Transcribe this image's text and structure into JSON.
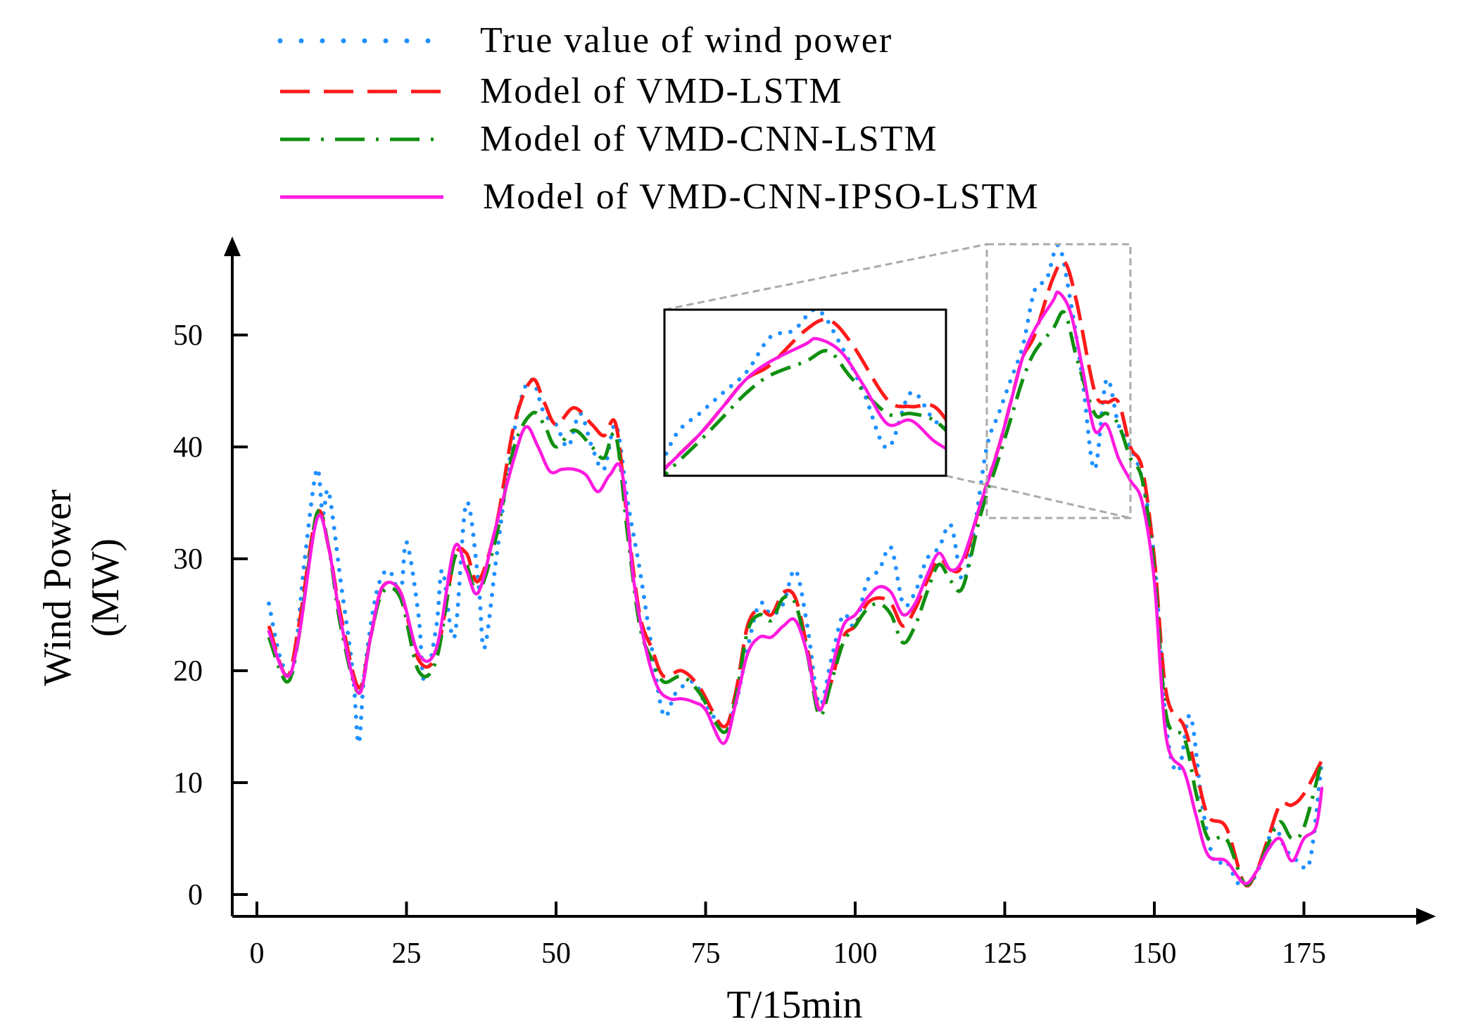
{
  "chart_data": {
    "type": "line",
    "title": "",
    "xlabel": "T/15min",
    "ylabel_line1": "Wind Power",
    "ylabel_line2": "(MW)",
    "xlim": [
      -2,
      192
    ],
    "ylim": [
      -1,
      58
    ],
    "xticks": [
      0,
      25,
      50,
      75,
      100,
      125,
      150,
      175
    ],
    "yticks": [
      0,
      10,
      20,
      30,
      40,
      50
    ],
    "legend_position": "top-center",
    "inset": {
      "x_range": [
        121,
        145
      ],
      "y_range": [
        34,
        58
      ],
      "note": "zoomed view of peak region"
    },
    "series": [
      {
        "name": "True value of wind power",
        "color": "#1e90ff",
        "style": "dotted",
        "points": [
          [
            2,
            26
          ],
          [
            4,
            21
          ],
          [
            6,
            20
          ],
          [
            8,
            30
          ],
          [
            10,
            38
          ],
          [
            11,
            34
          ],
          [
            12,
            36
          ],
          [
            14,
            28
          ],
          [
            16,
            20
          ],
          [
            17,
            13.5
          ],
          [
            18,
            20
          ],
          [
            20,
            27
          ],
          [
            22,
            29
          ],
          [
            24,
            27
          ],
          [
            25,
            31.5
          ],
          [
            27,
            25
          ],
          [
            28,
            19
          ],
          [
            30,
            24
          ],
          [
            31,
            29
          ],
          [
            33,
            23
          ],
          [
            35,
            35
          ],
          [
            37,
            28
          ],
          [
            38,
            22
          ],
          [
            40,
            30
          ],
          [
            42,
            38
          ],
          [
            44,
            44
          ],
          [
            46,
            46
          ],
          [
            48,
            43
          ],
          [
            50,
            42
          ],
          [
            52,
            40
          ],
          [
            54,
            43
          ],
          [
            56,
            40
          ],
          [
            58,
            38
          ],
          [
            60,
            42
          ],
          [
            62,
            35
          ],
          [
            64,
            29
          ],
          [
            66,
            22
          ],
          [
            68,
            16
          ],
          [
            70,
            18
          ],
          [
            73,
            19
          ],
          [
            75,
            17
          ],
          [
            78,
            15
          ],
          [
            80,
            17
          ],
          [
            82,
            22
          ],
          [
            84,
            26
          ],
          [
            86,
            25
          ],
          [
            88,
            26
          ],
          [
            90,
            29
          ],
          [
            92,
            24
          ],
          [
            94,
            17
          ],
          [
            96,
            21
          ],
          [
            98,
            25
          ],
          [
            100,
            24
          ],
          [
            102,
            28
          ],
          [
            104,
            29
          ],
          [
            106,
            31
          ],
          [
            108,
            26
          ],
          [
            110,
            27
          ],
          [
            112,
            30
          ],
          [
            114,
            31
          ],
          [
            116,
            33
          ],
          [
            118,
            28
          ],
          [
            120,
            33
          ],
          [
            122,
            40
          ],
          [
            124,
            43
          ],
          [
            126,
            46
          ],
          [
            128,
            49
          ],
          [
            130,
            54
          ],
          [
            132,
            55
          ],
          [
            134,
            58
          ],
          [
            136,
            53
          ],
          [
            138,
            46
          ],
          [
            140,
            38
          ],
          [
            142,
            46
          ],
          [
            144,
            42
          ],
          [
            146,
            40
          ],
          [
            148,
            37
          ],
          [
            150,
            30
          ],
          [
            152,
            15
          ],
          [
            154,
            11
          ],
          [
            156,
            16
          ],
          [
            158,
            8
          ],
          [
            160,
            3
          ],
          [
            162,
            3
          ],
          [
            164,
            1
          ],
          [
            166,
            1
          ],
          [
            168,
            3
          ],
          [
            170,
            6
          ],
          [
            172,
            4
          ],
          [
            174,
            3
          ],
          [
            176,
            3
          ],
          [
            178,
            12
          ]
        ]
      },
      {
        "name": "Model of VMD-LSTM",
        "color": "#ff1a1a",
        "style": "dashed",
        "points": [
          [
            2,
            24
          ],
          [
            5,
            19.5
          ],
          [
            7,
            24
          ],
          [
            10,
            34
          ],
          [
            12,
            31
          ],
          [
            14,
            25
          ],
          [
            17,
            18.5
          ],
          [
            19,
            23
          ],
          [
            21,
            27.5
          ],
          [
            24,
            27
          ],
          [
            27,
            21
          ],
          [
            30,
            21.5
          ],
          [
            33,
            30
          ],
          [
            35,
            30.5
          ],
          [
            37,
            28
          ],
          [
            40,
            33
          ],
          [
            43,
            42
          ],
          [
            46,
            46
          ],
          [
            48,
            44
          ],
          [
            50,
            42
          ],
          [
            53,
            43.5
          ],
          [
            56,
            42
          ],
          [
            58,
            41
          ],
          [
            60,
            42
          ],
          [
            62,
            33
          ],
          [
            64,
            25
          ],
          [
            66,
            22
          ],
          [
            68,
            19.5
          ],
          [
            71,
            20
          ],
          [
            74,
            18.5
          ],
          [
            78,
            15
          ],
          [
            80,
            18
          ],
          [
            82,
            24
          ],
          [
            84,
            25.5
          ],
          [
            86,
            25
          ],
          [
            88,
            27
          ],
          [
            90,
            26.5
          ],
          [
            92,
            22
          ],
          [
            94,
            16.5
          ],
          [
            96,
            19
          ],
          [
            98,
            23
          ],
          [
            100,
            24
          ],
          [
            102,
            26
          ],
          [
            104,
            26.5
          ],
          [
            106,
            26
          ],
          [
            108,
            24
          ],
          [
            110,
            25.5
          ],
          [
            112,
            28
          ],
          [
            114,
            30
          ],
          [
            116,
            29
          ],
          [
            118,
            29.5
          ],
          [
            121,
            35
          ],
          [
            124,
            40
          ],
          [
            126,
            44
          ],
          [
            128,
            48
          ],
          [
            130,
            50
          ],
          [
            133,
            55
          ],
          [
            135,
            56.5
          ],
          [
            137,
            53
          ],
          [
            140,
            45
          ],
          [
            142,
            44
          ],
          [
            144,
            44
          ],
          [
            146,
            40
          ],
          [
            148,
            38
          ],
          [
            150,
            30
          ],
          [
            152,
            18
          ],
          [
            155,
            15
          ],
          [
            157,
            11
          ],
          [
            159,
            7
          ],
          [
            162,
            6
          ],
          [
            165,
            1
          ],
          [
            167,
            2
          ],
          [
            169,
            5
          ],
          [
            171,
            8
          ],
          [
            173,
            8
          ],
          [
            175,
            9
          ],
          [
            178,
            12
          ]
        ]
      },
      {
        "name": "Model of VMD-CNN-LSTM",
        "color": "#109010",
        "style": "dashdot",
        "points": [
          [
            2,
            23
          ],
          [
            5,
            19
          ],
          [
            7,
            23
          ],
          [
            10,
            34
          ],
          [
            12,
            31
          ],
          [
            14,
            24
          ],
          [
            17,
            18
          ],
          [
            19,
            23
          ],
          [
            21,
            27
          ],
          [
            24,
            26.5
          ],
          [
            27,
            20
          ],
          [
            30,
            21
          ],
          [
            33,
            30
          ],
          [
            35,
            29.5
          ],
          [
            37,
            27
          ],
          [
            40,
            32
          ],
          [
            43,
            40
          ],
          [
            46,
            43
          ],
          [
            48,
            42
          ],
          [
            50,
            40
          ],
          [
            53,
            41.5
          ],
          [
            56,
            40
          ],
          [
            58,
            39
          ],
          [
            60,
            41
          ],
          [
            62,
            32
          ],
          [
            64,
            24
          ],
          [
            66,
            21
          ],
          [
            68,
            19
          ],
          [
            71,
            19.5
          ],
          [
            74,
            18
          ],
          [
            78,
            14.5
          ],
          [
            80,
            17.5
          ],
          [
            82,
            23.5
          ],
          [
            84,
            25
          ],
          [
            86,
            24.5
          ],
          [
            88,
            26.5
          ],
          [
            90,
            26
          ],
          [
            92,
            21.5
          ],
          [
            94,
            16
          ],
          [
            96,
            19
          ],
          [
            98,
            22.5
          ],
          [
            100,
            24
          ],
          [
            102,
            25.5
          ],
          [
            104,
            26
          ],
          [
            106,
            25
          ],
          [
            108,
            22.5
          ],
          [
            110,
            24
          ],
          [
            112,
            27
          ],
          [
            114,
            29.5
          ],
          [
            116,
            28
          ],
          [
            118,
            27.5
          ],
          [
            121,
            34
          ],
          [
            124,
            39
          ],
          [
            126,
            42.5
          ],
          [
            128,
            46
          ],
          [
            130,
            48.5
          ],
          [
            133,
            50.5
          ],
          [
            135,
            52
          ],
          [
            137,
            48
          ],
          [
            140,
            43
          ],
          [
            142,
            43
          ],
          [
            144,
            42
          ],
          [
            146,
            39
          ],
          [
            148,
            37
          ],
          [
            150,
            29
          ],
          [
            152,
            16
          ],
          [
            155,
            14
          ],
          [
            157,
            9
          ],
          [
            159,
            5
          ],
          [
            162,
            5
          ],
          [
            165,
            1
          ],
          [
            167,
            2
          ],
          [
            169,
            4.5
          ],
          [
            171,
            6.5
          ],
          [
            173,
            5
          ],
          [
            175,
            6
          ],
          [
            178,
            12
          ]
        ]
      },
      {
        "name": "Model of VMD-CNN-IPSO-LSTM",
        "color": "#ff1ae0",
        "style": "solid",
        "points": [
          [
            2,
            23.5
          ],
          [
            5,
            19.5
          ],
          [
            7,
            23
          ],
          [
            10,
            33.5
          ],
          [
            12,
            31
          ],
          [
            14,
            24.5
          ],
          [
            17,
            18
          ],
          [
            19,
            23
          ],
          [
            21,
            27.5
          ],
          [
            24,
            27
          ],
          [
            27,
            21.5
          ],
          [
            30,
            22
          ],
          [
            33,
            31
          ],
          [
            35,
            29
          ],
          [
            37,
            27
          ],
          [
            40,
            33
          ],
          [
            43,
            39
          ],
          [
            45,
            41.8
          ],
          [
            47,
            40
          ],
          [
            49,
            37.8
          ],
          [
            51,
            38
          ],
          [
            53,
            38
          ],
          [
            55,
            37.5
          ],
          [
            57,
            36
          ],
          [
            59,
            37.5
          ],
          [
            61,
            37.8
          ],
          [
            63,
            28
          ],
          [
            65,
            22
          ],
          [
            67,
            18.5
          ],
          [
            69,
            17.5
          ],
          [
            71,
            17.5
          ],
          [
            73,
            17.2
          ],
          [
            75,
            16.5
          ],
          [
            78,
            13.5
          ],
          [
            80,
            17
          ],
          [
            82,
            21.5
          ],
          [
            84,
            23
          ],
          [
            86,
            23
          ],
          [
            88,
            24
          ],
          [
            90,
            24.5
          ],
          [
            92,
            21.5
          ],
          [
            94,
            16.5
          ],
          [
            96,
            20
          ],
          [
            98,
            24
          ],
          [
            100,
            25
          ],
          [
            102,
            26.5
          ],
          [
            104,
            27.5
          ],
          [
            106,
            27
          ],
          [
            108,
            25
          ],
          [
            110,
            26
          ],
          [
            112,
            28.5
          ],
          [
            114,
            30.5
          ],
          [
            116,
            29
          ],
          [
            118,
            30
          ],
          [
            121,
            35
          ],
          [
            124,
            40
          ],
          [
            126,
            44
          ],
          [
            128,
            48
          ],
          [
            130,
            50.5
          ],
          [
            133,
            53
          ],
          [
            134,
            53.8
          ],
          [
            136,
            52
          ],
          [
            138,
            47
          ],
          [
            140,
            41.5
          ],
          [
            142,
            42
          ],
          [
            144,
            39
          ],
          [
            146,
            37
          ],
          [
            148,
            35
          ],
          [
            150,
            28
          ],
          [
            152,
            14
          ],
          [
            155,
            11
          ],
          [
            157,
            7
          ],
          [
            159,
            3.5
          ],
          [
            162,
            3
          ],
          [
            165,
            1
          ],
          [
            167,
            2
          ],
          [
            169,
            4
          ],
          [
            171,
            5
          ],
          [
            173,
            3
          ],
          [
            175,
            5
          ],
          [
            177,
            6
          ],
          [
            178,
            9.5
          ]
        ]
      }
    ]
  }
}
